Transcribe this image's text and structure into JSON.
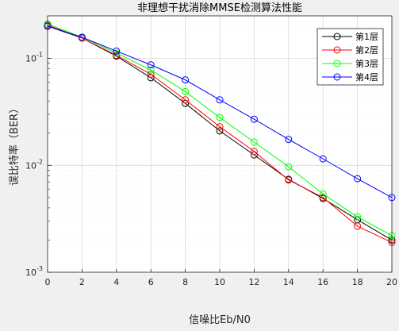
{
  "chart_data": {
    "type": "line",
    "title": "非理想干扰消除MMSE检测算法性能",
    "xlabel": "信噪比Eb/N0",
    "ylabel": "误比特率（BER）",
    "x": [
      0,
      2,
      4,
      6,
      8,
      10,
      12,
      14,
      16,
      18,
      20
    ],
    "xlim": [
      0,
      20
    ],
    "ylim": [
      0.001,
      0.25
    ],
    "yscale": "log",
    "xticks": [
      "0",
      "2",
      "4",
      "6",
      "8",
      "10",
      "12",
      "14",
      "16",
      "18",
      "20"
    ],
    "yticks": [
      {
        "value": 0.1,
        "base": "10",
        "exp": "-1"
      },
      {
        "value": 0.01,
        "base": "10",
        "exp": "-2"
      },
      {
        "value": 0.001,
        "base": "10",
        "exp": "-3"
      }
    ],
    "grid": true,
    "legend": "top-right",
    "series": [
      {
        "name": "第1层",
        "color": "#000000",
        "values": [
          0.2,
          0.155,
          0.105,
          0.066,
          0.038,
          0.021,
          0.0125,
          0.0074,
          0.0049,
          0.0031,
          0.002
        ]
      },
      {
        "name": "第2层",
        "color": "#ff0000",
        "values": [
          0.205,
          0.155,
          0.107,
          0.071,
          0.041,
          0.023,
          0.0135,
          0.0073,
          0.005,
          0.0027,
          0.0019
        ]
      },
      {
        "name": "第3层",
        "color": "#00ff00",
        "values": [
          0.21,
          0.158,
          0.112,
          0.078,
          0.049,
          0.028,
          0.0165,
          0.0097,
          0.0054,
          0.0033,
          0.0022
        ]
      },
      {
        "name": "第4层",
        "color": "#0000ff",
        "values": [
          0.2,
          0.158,
          0.117,
          0.087,
          0.063,
          0.041,
          0.027,
          0.0175,
          0.0115,
          0.0075,
          0.005
        ]
      }
    ]
  }
}
